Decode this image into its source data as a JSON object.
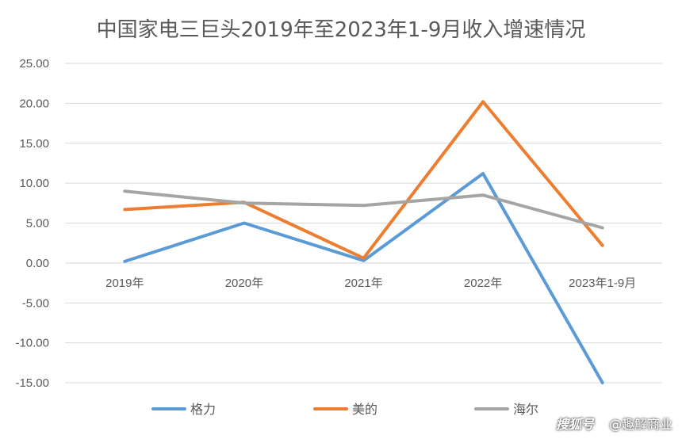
{
  "chart_data": {
    "type": "line",
    "title": "中国家电三巨头2019年至2023年1-9月收入增速情况",
    "categories": [
      "2019年",
      "2020年",
      "2021年",
      "2022年",
      "2023年1-9月"
    ],
    "ylim": [
      -15,
      25
    ],
    "yticks": [
      "25.00",
      "20.00",
      "15.00",
      "10.00",
      "5.00",
      "0.00",
      "-5.00",
      "-10.00",
      "-15.00"
    ],
    "ytick_values": [
      25,
      20,
      15,
      10,
      5,
      0,
      -5,
      -10,
      -15
    ],
    "grid": true,
    "legend_position": "bottom",
    "series": [
      {
        "name": "格力",
        "color": "#5B9BD5",
        "values": [
          0.2,
          5.0,
          0.3,
          11.2,
          -15.0
        ]
      },
      {
        "name": "美的",
        "color": "#ED7D31",
        "values": [
          6.7,
          7.6,
          0.6,
          20.2,
          2.2
        ]
      },
      {
        "name": "海尔",
        "color": "#A5A5A5",
        "values": [
          9.0,
          7.5,
          7.2,
          8.5,
          4.4
        ]
      }
    ]
  },
  "watermark": {
    "logo": "搜狐号",
    "text": "@趣解商业"
  }
}
